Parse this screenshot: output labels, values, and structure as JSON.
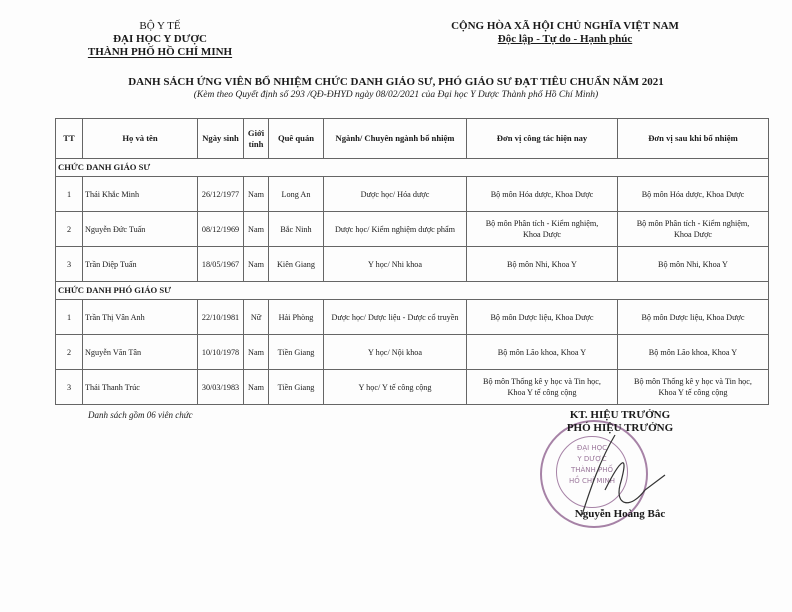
{
  "header_left": [
    "BỘ Y TẾ",
    "ĐẠI HỌC Y DƯỢC",
    "THÀNH PHỐ HỒ CHÍ MINH"
  ],
  "header_right": [
    "CỘNG HÒA XÃ HỘI CHỦ NGHĨA VIỆT NAM",
    "Độc lập - Tự do - Hạnh phúc"
  ],
  "title": "DANH SÁCH ỨNG VIÊN BỔ NHIỆM CHỨC DANH GIÁO SƯ, PHÓ GIÁO SƯ ĐẠT TIÊU CHUẨN NĂM 2021",
  "subtitle": "(Kèm theo Quyết định số 293 /QĐ-ĐHYD ngày 08/02/2021 của Đại học Y Dược Thành phố Hồ Chí Minh)",
  "columns": [
    "TT",
    "Họ và tên",
    "Ngày sinh",
    "Giới tính",
    "Quê quán",
    "Ngành/ Chuyên ngành bổ nhiệm",
    "Đơn vị công tác hiện nay",
    "Đơn vị sau khi bổ nhiệm"
  ],
  "sections": [
    {
      "title": "CHỨC DANH GIÁO SƯ",
      "rows": [
        [
          "1",
          "Thái Khắc Minh",
          "26/12/1977",
          "Nam",
          "Long An",
          "Dược học/ Hóa dược",
          "Bộ môn Hóa dược, Khoa Dược",
          "Bộ môn Hóa dược, Khoa Dược"
        ],
        [
          "2",
          "Nguyễn Đức Tuấn",
          "08/12/1969",
          "Nam",
          "Bắc Ninh",
          "Dược học/ Kiểm nghiệm dược phẩm",
          "Bộ môn Phân tích - Kiểm nghiệm, Khoa Dược",
          "Bộ môn Phân tích - Kiểm nghiệm, Khoa Dược"
        ],
        [
          "3",
          "Trần Diệp Tuấn",
          "18/05/1967",
          "Nam",
          "Kiên Giang",
          "Y học/ Nhi khoa",
          "Bộ môn Nhi, Khoa Y",
          "Bộ môn Nhi, Khoa Y"
        ]
      ]
    },
    {
      "title": "CHỨC DANH PHÓ GIÁO SƯ",
      "rows": [
        [
          "1",
          "Trần Thị Vân Anh",
          "22/10/1981",
          "Nữ",
          "Hải Phòng",
          "Dược học/ Dược liệu - Dược cổ truyền",
          "Bộ môn Dược liệu, Khoa Dược",
          "Bộ môn Dược liệu, Khoa Dược"
        ],
        [
          "2",
          "Nguyễn Văn Tân",
          "10/10/1978",
          "Nam",
          "Tiền Giang",
          "Y học/ Nội khoa",
          "Bộ môn Lão khoa, Khoa Y",
          "Bộ môn Lão khoa, Khoa Y"
        ],
        [
          "3",
          "Thái Thanh Trúc",
          "30/03/1983",
          "Nam",
          "Tiền Giang",
          "Y học/ Y tế công cộng",
          "Bộ môn Thống kê y học và Tin học, Khoa Y tế công cộng",
          "Bộ môn Thống kê y học và Tin học, Khoa Y tế công cộng"
        ]
      ]
    }
  ],
  "footer_note": "Danh sách gồm 06 viên chức",
  "signature": {
    "line1": "KT. HIỆU TRƯỞNG",
    "line2": "PHÓ HIỆU TRƯỞNG",
    "name": "Nguyễn Hoàng Bắc"
  },
  "stamp_text": [
    "ĐẠI HỌC",
    "Y DƯỢC",
    "THÀNH PHỐ",
    "HỒ CHÍ MINH"
  ]
}
